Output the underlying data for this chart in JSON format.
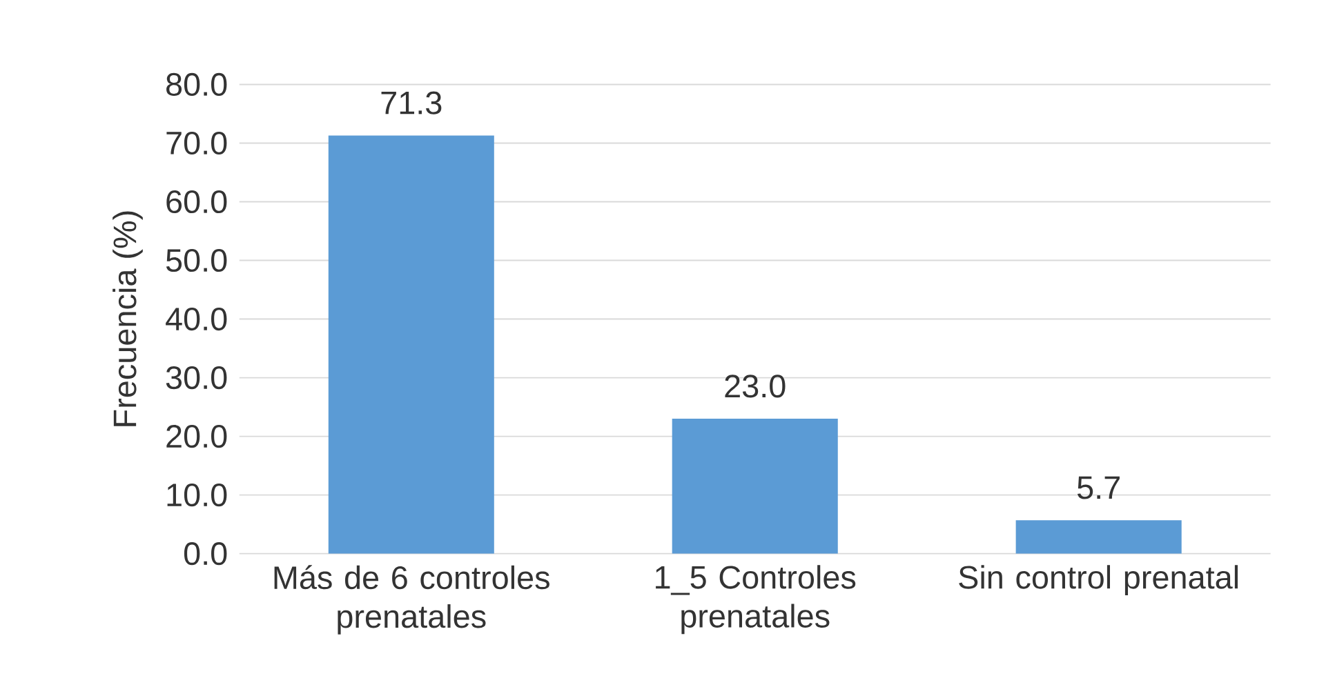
{
  "chart_data": {
    "type": "bar",
    "ylabel": "Frecuencia (%)",
    "categories": [
      "Más de 6 controles prenatales",
      "1_5 Controles prenatales",
      "Sin control prenatal"
    ],
    "values": [
      71.3,
      23.0,
      5.7
    ],
    "value_labels": [
      "71.3",
      "23.0",
      "5.7"
    ],
    "color": "#5b9bd5",
    "ylim": [
      0,
      80
    ],
    "yticks": [
      {
        "value": 0,
        "label": "0.0"
      },
      {
        "value": 10,
        "label": "10.0"
      },
      {
        "value": 20,
        "label": "20.0"
      },
      {
        "value": 30,
        "label": "30.0"
      },
      {
        "value": 40,
        "label": "40.0"
      },
      {
        "value": 50,
        "label": "50.0"
      },
      {
        "value": 60,
        "label": "60.0"
      },
      {
        "value": 70,
        "label": "70.0"
      },
      {
        "value": 80,
        "label": "80.0"
      }
    ],
    "grid": "y"
  }
}
